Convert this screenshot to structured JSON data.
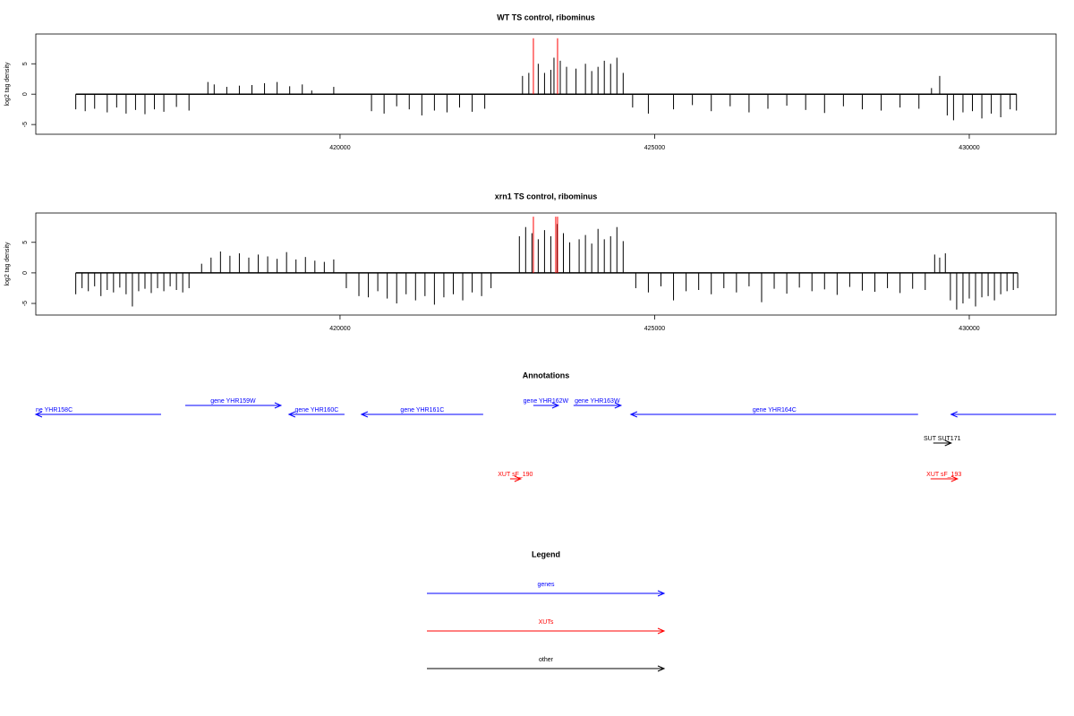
{
  "chart_data": [
    {
      "type": "spike",
      "title": "WT TS control, ribominus",
      "y_label": "log2 tag density",
      "xlim": [
        415165,
        431380
      ],
      "ylim": [
        -6.6,
        9.9
      ],
      "xticks": [
        420000,
        425000,
        430000
      ],
      "yticks": [
        -5,
        0,
        5
      ],
      "series": [
        {
          "color": "#000000",
          "x": [
            415800,
            415950,
            416100,
            416300,
            416450,
            416600,
            416750,
            416900,
            417050,
            417200,
            417400,
            417600,
            417900,
            418000,
            418200,
            418400,
            418600,
            418800,
            419000,
            419200,
            419400,
            419550,
            419900,
            420500,
            420700,
            420900,
            421100,
            421300,
            421500,
            421700,
            421900,
            422100,
            422300,
            422900,
            423000,
            423150,
            423250,
            423350,
            423400,
            423500,
            423600,
            423750,
            423900,
            424000,
            424100,
            424200,
            424300,
            424400,
            424500,
            424650,
            424900,
            425300,
            425600,
            425900,
            426200,
            426500,
            426800,
            427100,
            427400,
            427700,
            428000,
            428300,
            428600,
            428900,
            429200,
            429400,
            429530,
            429650,
            429750,
            429900,
            430050,
            430200,
            430350,
            430500,
            430650,
            430750
          ],
          "values": [
            -2.5,
            -2.8,
            -2.4,
            -3,
            -2.2,
            -3.2,
            -2.6,
            -3.3,
            -2.5,
            -2.9,
            -2.1,
            -2.7,
            2,
            1.6,
            1.2,
            1.4,
            1.5,
            1.8,
            2,
            1.3,
            1.6,
            0.6,
            1.2,
            -2.8,
            -3.2,
            -2,
            -2.5,
            -3.5,
            -2.7,
            -3,
            -2.2,
            -2.9,
            -2.4,
            3,
            3.5,
            5,
            3.5,
            4,
            6,
            5.5,
            4.5,
            4.2,
            5,
            3.8,
            4.5,
            5.5,
            5,
            6,
            3.5,
            -2.2,
            -3.2,
            -2.5,
            -1.8,
            -2.8,
            -2,
            -3,
            -2.4,
            -1.9,
            -2.6,
            -3.1,
            -2,
            -2.5,
            -2.7,
            -2.2,
            -2.4,
            1,
            3,
            -3.5,
            -4.3,
            -3,
            -2.8,
            -4,
            -3.2,
            -3.8,
            -2.5,
            -2.7
          ]
        },
        {
          "color": "#ff0000",
          "x": [
            423073,
            423457
          ],
          "values": [
            9.2,
            9.2
          ]
        }
      ]
    },
    {
      "type": "spike",
      "title": "xrn1 TS control, ribominus",
      "y_label": "log2 tag density",
      "xlim": [
        415165,
        431380
      ],
      "ylim": [
        -6.9,
        9.8
      ],
      "xticks": [
        420000,
        425000,
        430000
      ],
      "yticks": [
        -5,
        0,
        5
      ],
      "series": [
        {
          "color": "#000000",
          "x": [
            415800,
            415900,
            416000,
            416100,
            416200,
            416300,
            416400,
            416500,
            416600,
            416700,
            416800,
            416900,
            417000,
            417100,
            417200,
            417300,
            417400,
            417500,
            417600,
            417800,
            417950,
            418100,
            418250,
            418400,
            418550,
            418700,
            418850,
            419000,
            419150,
            419300,
            419450,
            419600,
            419750,
            419900,
            420100,
            420300,
            420450,
            420600,
            420750,
            420900,
            421050,
            421200,
            421350,
            421500,
            421650,
            421800,
            421950,
            422100,
            422250,
            422400,
            422850,
            422950,
            423050,
            423150,
            423250,
            423350,
            423450,
            423550,
            423650,
            423800,
            423900,
            424000,
            424100,
            424200,
            424300,
            424400,
            424500,
            424700,
            424900,
            425100,
            425300,
            425500,
            425700,
            425900,
            426100,
            426300,
            426500,
            426700,
            426900,
            427100,
            427300,
            427500,
            427700,
            427900,
            428100,
            428300,
            428500,
            428700,
            428900,
            429100,
            429300,
            429450,
            429530,
            429620,
            429700,
            429800,
            429900,
            430000,
            430100,
            430200,
            430300,
            430400,
            430500,
            430600,
            430700,
            430770
          ],
          "values": [
            -3.5,
            -2.5,
            -3,
            -2.2,
            -3.8,
            -2.8,
            -3.2,
            -2.4,
            -3.5,
            -5.5,
            -3,
            -2.6,
            -3.3,
            -2.5,
            -3,
            -2.2,
            -2.8,
            -3.2,
            -2.5,
            1.5,
            2.5,
            3.5,
            2.8,
            3.2,
            2.5,
            3,
            2.7,
            2.3,
            3.4,
            2.2,
            2.6,
            2,
            1.8,
            2.2,
            -2.5,
            -3.8,
            -4,
            -3,
            -4.2,
            -5,
            -3.5,
            -4.5,
            -3.8,
            -5.2,
            -4,
            -3.5,
            -4.5,
            -3.2,
            -3.8,
            -2.5,
            6,
            7.5,
            6.5,
            5.5,
            7,
            6,
            8,
            6.5,
            5,
            5.5,
            6.2,
            4.8,
            7.2,
            5.5,
            6,
            7.5,
            5.2,
            -2.5,
            -3.2,
            -2.2,
            -4.5,
            -3,
            -2.8,
            -3.5,
            -2.5,
            -3.2,
            -2.2,
            -4.8,
            -2.6,
            -3.4,
            -2.4,
            -3,
            -2.7,
            -3.6,
            -2.3,
            -2.9,
            -3.1,
            -2.5,
            -3.3,
            -2.6,
            -2.8,
            3,
            2.5,
            3.2,
            -4.5,
            -6,
            -5,
            -4.2,
            -5.5,
            -4,
            -3.8,
            -4.5,
            -3.5,
            -3,
            -2.8,
            -2.5
          ]
        },
        {
          "color": "#ff0000",
          "x": [
            423073,
            423428,
            423457
          ],
          "values": [
            9.2,
            9.2,
            9.2
          ]
        }
      ]
    }
  ],
  "annotations": {
    "title": "Annotations",
    "features": [
      {
        "label": "ne YHR158C",
        "group": "genes",
        "start": 415165,
        "end": 417156,
        "strand": "-"
      },
      {
        "label": "gene YHR159W",
        "group": "genes",
        "start": 417540,
        "end": 419061,
        "strand": "+"
      },
      {
        "label": "gene YHR160C",
        "group": "genes",
        "start": 419189,
        "end": 420071,
        "strand": "-"
      },
      {
        "label": "gene YHR161C",
        "group": "genes",
        "start": 420341,
        "end": 422275,
        "strand": "-"
      },
      {
        "label": "gene YHR162W",
        "group": "genes",
        "start": 423072,
        "end": 423470,
        "strand": "+"
      },
      {
        "label": "gene YHR163W",
        "group": "genes",
        "start": 423711,
        "end": 424465,
        "strand": "+"
      },
      {
        "label": "gene YHR164C",
        "group": "genes",
        "start": 424622,
        "end": 429186,
        "strand": "-"
      },
      {
        "group": "genes",
        "start": 429712,
        "end": 431380,
        "strand": "-"
      },
      {
        "label": "SUT SUT171",
        "group": "other",
        "start": 429428,
        "end": 429712,
        "strand": "+"
      },
      {
        "label": "XUT sF_190",
        "group": "XUTs",
        "start": 422702,
        "end": 422872,
        "strand": "+"
      },
      {
        "label": "XUT sF_193",
        "group": "XUTs",
        "start": 429385,
        "end": 429812,
        "strand": "+"
      }
    ]
  },
  "legend": {
    "title": "Legend",
    "entries": [
      {
        "label": "genes",
        "color": "#0000ff"
      },
      {
        "label": "XUTs",
        "color": "#ff0000"
      },
      {
        "label": "other",
        "color": "#000000"
      }
    ]
  }
}
